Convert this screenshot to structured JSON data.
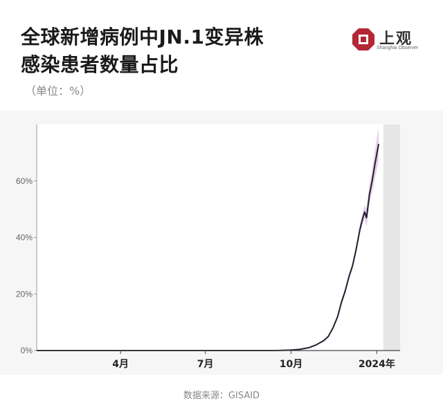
{
  "title_line1": "全球新增病例中JN.1变异株",
  "title_line2": "感染患者数量占比",
  "unit": "（单位：%）",
  "source": "数据来源：GISAID",
  "brand": {
    "name": "上观",
    "subtitle": "Shanghai Observer",
    "color": "#b32634"
  },
  "chart_data": {
    "type": "line",
    "title": "全球新增病例中JN.1变异株感染患者数量占比",
    "ylabel": "%",
    "ylim": [
      0,
      80
    ],
    "xlim": [
      "2023-01-01",
      "2024-01-26"
    ],
    "y_ticks": [
      {
        "value": 0,
        "label": "0%"
      },
      {
        "value": 20,
        "label": "20%"
      },
      {
        "value": 40,
        "label": "40%"
      },
      {
        "value": 60,
        "label": "60%"
      }
    ],
    "x_ticks": [
      {
        "date": "2023-04-01",
        "label": "4月"
      },
      {
        "date": "2023-07-01",
        "label": "7月"
      },
      {
        "date": "2023-10-01",
        "label": "10月"
      },
      {
        "date": "2024-01-01",
        "label": "2024年"
      }
    ],
    "shaded_region": [
      "2024-01-08",
      "2024-01-26"
    ],
    "series": [
      {
        "color": "#1f1f2e",
        "band_color": "#d9a6d6",
        "points": [
          {
            "date": "2023-01-01",
            "y": 0
          },
          {
            "date": "2023-08-01",
            "y": 0
          },
          {
            "date": "2023-09-15",
            "y": 0
          },
          {
            "date": "2023-10-01",
            "y": 0.2
          },
          {
            "date": "2023-10-10",
            "y": 0.4
          },
          {
            "date": "2023-10-20",
            "y": 1
          },
          {
            "date": "2023-10-28",
            "y": 2
          },
          {
            "date": "2023-11-05",
            "y": 3.5
          },
          {
            "date": "2023-11-10",
            "y": 5
          },
          {
            "date": "2023-11-15",
            "y": 8
          },
          {
            "date": "2023-11-20",
            "y": 12
          },
          {
            "date": "2023-11-24",
            "y": 17
          },
          {
            "date": "2023-11-28",
            "y": 21
          },
          {
            "date": "2023-12-02",
            "y": 26
          },
          {
            "date": "2023-12-06",
            "y": 30
          },
          {
            "date": "2023-12-10",
            "y": 36
          },
          {
            "date": "2023-12-14",
            "y": 43
          },
          {
            "date": "2023-12-17",
            "y": 47
          },
          {
            "date": "2023-12-19",
            "y": 49
          },
          {
            "date": "2023-12-21",
            "y": 47
          },
          {
            "date": "2023-12-24",
            "y": 55
          },
          {
            "date": "2023-12-27",
            "y": 60
          },
          {
            "date": "2023-12-30",
            "y": 66
          },
          {
            "date": "2024-01-03",
            "y": 73
          }
        ],
        "band_half_width": [
          0,
          0,
          0,
          0,
          0,
          0,
          0.2,
          0.3,
          0.4,
          0.5,
          0.6,
          0.8,
          1,
          1,
          1,
          1.2,
          1.5,
          2,
          2.5,
          3,
          3.5,
          4,
          5,
          6
        ]
      }
    ],
    "grid": false
  }
}
